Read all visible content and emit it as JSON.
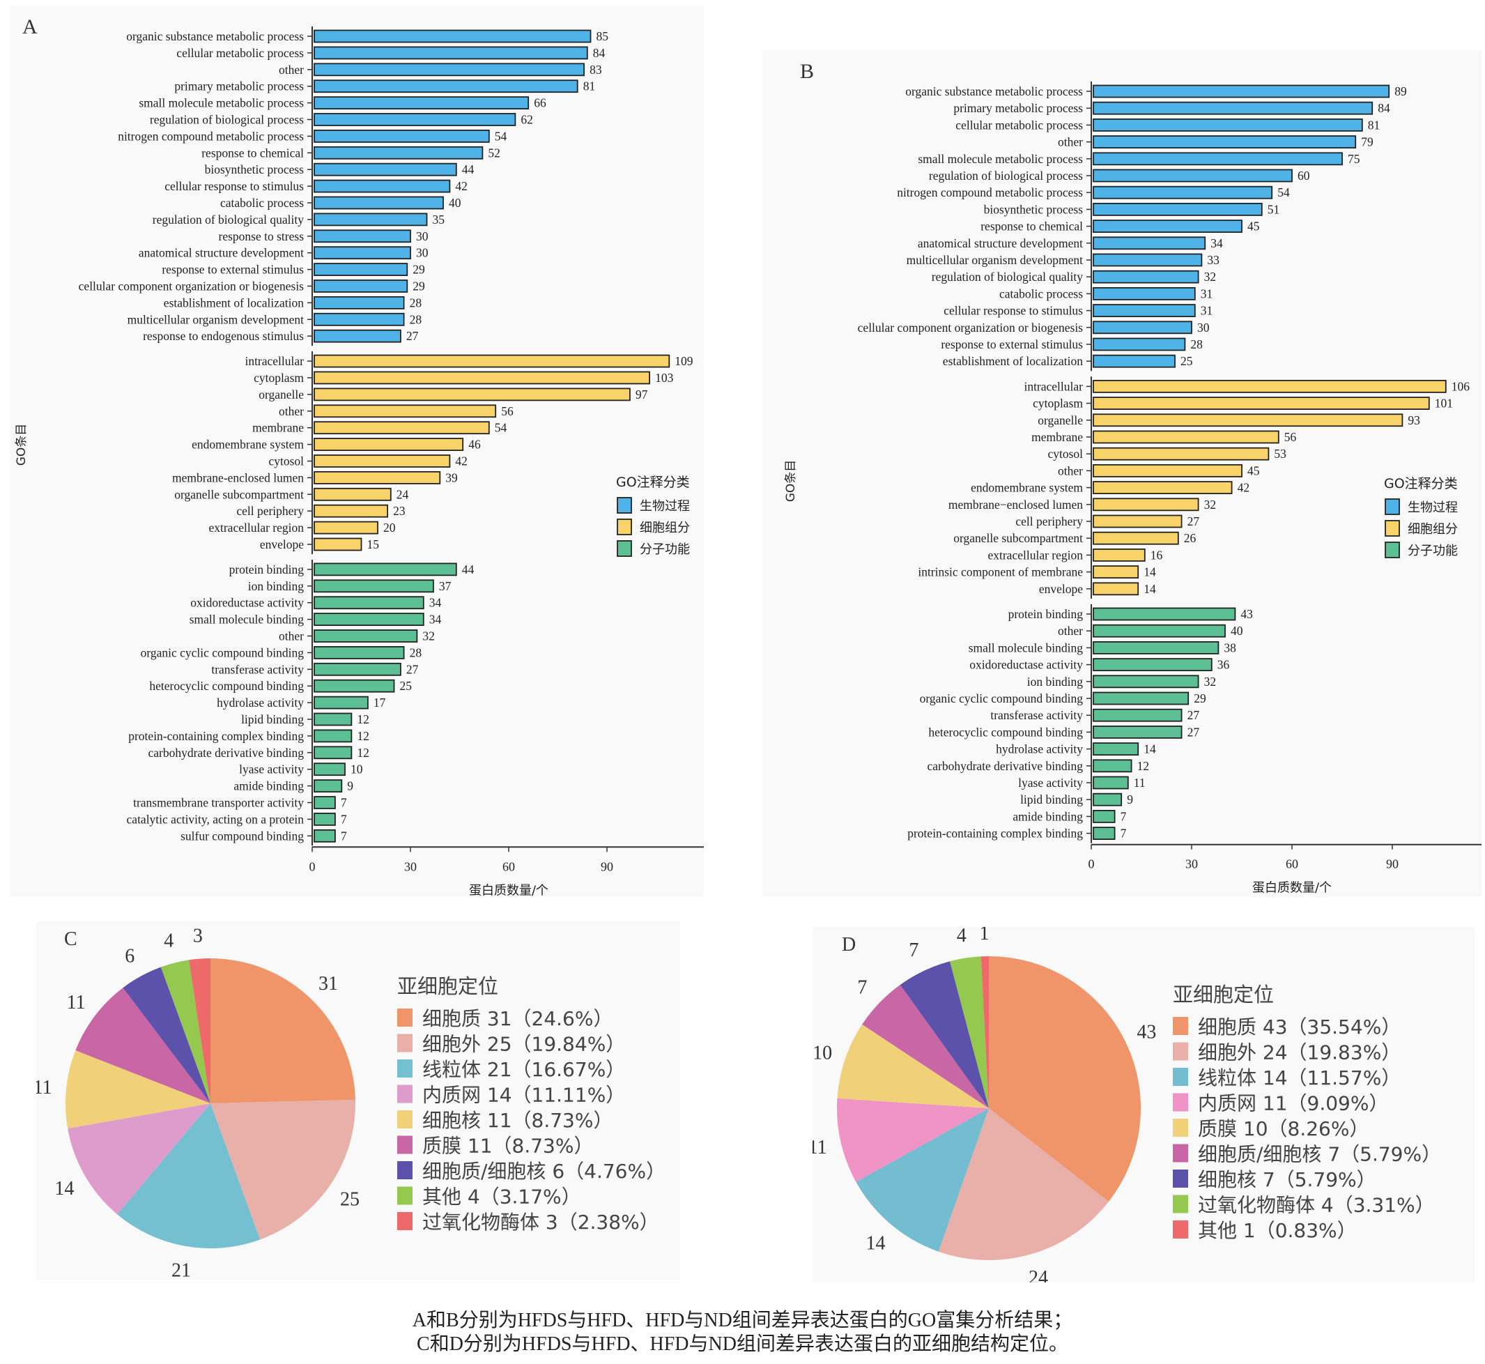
{
  "caption": {
    "line1": "A和B分别为HFDS与HFD、HFD与ND组间差异表达蛋白的GO富集分析结果；",
    "line2": "C和D分别为HFDS与HFD、HFD与ND组间差异表达蛋白的亚细胞结构定位。"
  },
  "chart_data": [
    {
      "panel": "A",
      "type": "bar",
      "orientation": "horizontal",
      "xlabel": "蛋白质数量/个",
      "ylabel": "GO条目",
      "xticks": [
        0,
        30,
        60,
        90
      ],
      "xlim": [
        0,
        118
      ],
      "grid": false,
      "legend": {
        "title": "GO注释分类",
        "position": "right",
        "items": [
          {
            "label": "生物过程",
            "color": "#4fb3e8"
          },
          {
            "label": "细胞组分",
            "color": "#f7d36a"
          },
          {
            "label": "分子功能",
            "color": "#5dbf94"
          }
        ]
      },
      "groups": [
        {
          "name": "生物过程",
          "color": "#4fb3e8",
          "categories": [
            "organic substance metabolic process",
            "cellular metabolic process",
            "other",
            "primary metabolic process",
            "small molecule metabolic process",
            "regulation of biological process",
            "nitrogen compound metabolic process",
            "response to chemical",
            "biosynthetic process",
            "cellular response to stimulus",
            "catabolic process",
            "regulation of biological quality",
            "response to stress",
            "anatomical structure development",
            "response to external stimulus",
            "cellular component organization or biogenesis",
            "establishment of localization",
            "multicellular organism development",
            "response to endogenous stimulus"
          ],
          "values": [
            85,
            84,
            83,
            81,
            66,
            62,
            54,
            52,
            44,
            42,
            40,
            35,
            30,
            30,
            29,
            29,
            28,
            28,
            27
          ]
        },
        {
          "name": "细胞组分",
          "color": "#f7d36a",
          "categories": [
            "intracellular",
            "cytoplasm",
            "organelle",
            "other",
            "membrane",
            "endomembrane system",
            "cytosol",
            "membrane-enclosed lumen",
            "organelle subcompartment",
            "cell periphery",
            "extracellular region",
            "envelope"
          ],
          "values": [
            109,
            103,
            97,
            56,
            54,
            46,
            42,
            39,
            24,
            23,
            20,
            15
          ]
        },
        {
          "name": "分子功能",
          "color": "#5dbf94",
          "categories": [
            "protein binding",
            "ion binding",
            "oxidoreductase activity",
            "small molecule binding",
            "other",
            "organic cyclic compound binding",
            "transferase activity",
            "heterocyclic compound binding",
            "hydrolase activity",
            "lipid binding",
            "protein-containing complex binding",
            "carbohydrate derivative binding",
            "lyase activity",
            "amide binding",
            "transmembrane transporter activity",
            "catalytic activity, acting on a protein",
            "sulfur compound binding"
          ],
          "values": [
            44,
            37,
            34,
            34,
            32,
            28,
            27,
            25,
            17,
            12,
            12,
            12,
            10,
            9,
            7,
            7,
            7
          ]
        }
      ]
    },
    {
      "panel": "B",
      "type": "bar",
      "orientation": "horizontal",
      "xlabel": "蛋白质数量/个",
      "ylabel": "GO条目",
      "xticks": [
        0,
        30,
        60,
        90
      ],
      "xlim": [
        0,
        115
      ],
      "grid": false,
      "legend": {
        "title": "GO注释分类",
        "position": "right",
        "items": [
          {
            "label": "生物过程",
            "color": "#4fb3e8"
          },
          {
            "label": "细胞组分",
            "color": "#f7d36a"
          },
          {
            "label": "分子功能",
            "color": "#5dbf94"
          }
        ]
      },
      "groups": [
        {
          "name": "生物过程",
          "color": "#4fb3e8",
          "categories": [
            "organic substance metabolic process",
            "primary metabolic process",
            "cellular metabolic process",
            "other",
            "small molecule metabolic process",
            "regulation of biological process",
            "nitrogen compound metabolic process",
            "biosynthetic process",
            "response to chemical",
            "anatomical structure development",
            "multicellular organism development",
            "regulation of biological quality",
            "catabolic process",
            "cellular response to stimulus",
            "cellular component organization or biogenesis",
            "response to external stimulus",
            "establishment of localization"
          ],
          "values": [
            89,
            84,
            81,
            79,
            75,
            60,
            54,
            51,
            45,
            34,
            33,
            32,
            31,
            31,
            30,
            28,
            25
          ]
        },
        {
          "name": "细胞组分",
          "color": "#f7d36a",
          "categories": [
            "intracellular",
            "cytoplasm",
            "organelle",
            "membrane",
            "cytosol",
            "other",
            "endomembrane system",
            "membrane−enclosed lumen",
            "cell periphery",
            "organelle subcompartment",
            "extracellular region",
            "intrinsic component of membrane",
            "envelope"
          ],
          "values": [
            106,
            101,
            93,
            56,
            53,
            45,
            42,
            32,
            27,
            26,
            16,
            14,
            14
          ]
        },
        {
          "name": "分子功能",
          "color": "#5dbf94",
          "categories": [
            "protein binding",
            "other",
            "small molecule binding",
            "oxidoreductase activity",
            "ion binding",
            "organic cyclic compound binding",
            "transferase activity",
            "heterocyclic compound binding",
            "hydrolase activity",
            "carbohydrate derivative binding",
            "lyase activity",
            "lipid binding",
            "amide binding",
            "protein-containing complex binding"
          ],
          "values": [
            43,
            40,
            38,
            36,
            32,
            29,
            27,
            27,
            14,
            12,
            11,
            9,
            7,
            7
          ]
        }
      ]
    },
    {
      "panel": "C",
      "type": "pie",
      "legend_title": "亚细胞定位",
      "legend_position": "right",
      "slices": [
        {
          "label": "细胞质",
          "value": 31,
          "percent": "24.6%",
          "color": "#f0956a"
        },
        {
          "label": "细胞外",
          "value": 25,
          "percent": "19.84%",
          "color": "#e8b0a8"
        },
        {
          "label": "线粒体",
          "value": 21,
          "percent": "16.67%",
          "color": "#74c0d0"
        },
        {
          "label": "内质网",
          "value": 14,
          "percent": "11.11%",
          "color": "#de9ccc"
        },
        {
          "label": "细胞核",
          "value": 11,
          "percent": "8.73%",
          "color": "#f0d078"
        },
        {
          "label": "质膜",
          "value": 11,
          "percent": "8.73%",
          "color": "#c866a6"
        },
        {
          "label": "细胞质/细胞核",
          "value": 6,
          "percent": "4.76%",
          "color": "#5c52ac"
        },
        {
          "label": "其他",
          "value": 4,
          "percent": "3.17%",
          "color": "#94c84e"
        },
        {
          "label": "过氧化物酶体",
          "value": 3,
          "percent": "2.38%",
          "color": "#ee6a6a"
        }
      ]
    },
    {
      "panel": "D",
      "type": "pie",
      "legend_title": "亚细胞定位",
      "legend_position": "right",
      "slices": [
        {
          "label": "细胞质",
          "value": 43,
          "percent": "35.54%",
          "color": "#f0956a"
        },
        {
          "label": "细胞外",
          "value": 24,
          "percent": "19.83%",
          "color": "#e8b0a8"
        },
        {
          "label": "线粒体",
          "value": 14,
          "percent": "11.57%",
          "color": "#74bcd0"
        },
        {
          "label": "内质网",
          "value": 11,
          "percent": "9.09%",
          "color": "#f094c6"
        },
        {
          "label": "质膜",
          "value": 10,
          "percent": "8.26%",
          "color": "#f0d078"
        },
        {
          "label": "细胞质/细胞核",
          "value": 7,
          "percent": "5.79%",
          "color": "#c866a6"
        },
        {
          "label": "细胞核",
          "value": 7,
          "percent": "5.79%",
          "color": "#5c52ac"
        },
        {
          "label": "过氧化物酶体",
          "value": 4,
          "percent": "3.31%",
          "color": "#94c84e"
        },
        {
          "label": "其他",
          "value": 1,
          "percent": "0.83%",
          "color": "#ee6a6a"
        }
      ]
    }
  ]
}
